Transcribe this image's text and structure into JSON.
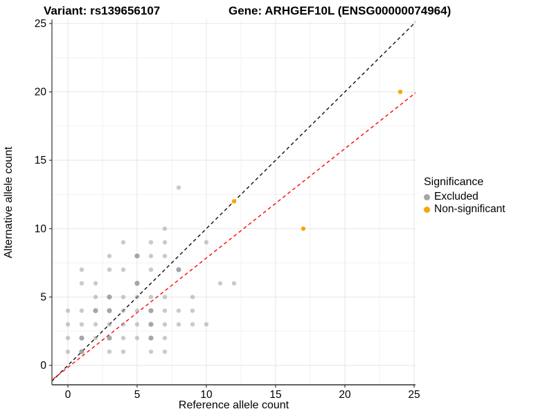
{
  "titles": {
    "variant": "Variant: rs139656107",
    "gene": "Gene: ARHGEF10L (ENSG00000074964)"
  },
  "legend": {
    "title": "Significance",
    "items": [
      {
        "label": "Excluded",
        "color": "#A6A6A6"
      },
      {
        "label": "Non-significant",
        "color": "#F9A602"
      }
    ]
  },
  "colors": {
    "background": "#ffffff",
    "grid_major": "#E5E5E5",
    "grid_minor": "#F2F2F2",
    "axis_line": "#4D4D4D",
    "identity_line": "#0D0D0D",
    "regression_line": "#FF0000",
    "excluded_point": "#969696",
    "non_significant_point": "#F9A602",
    "text": "#000000"
  },
  "chart_data": {
    "type": "scatter",
    "title_left": "Variant: rs139656107",
    "title_right": "Gene: ARHGEF10L (ENSG00000074964)",
    "xlabel": "Reference allele count",
    "ylabel": "Alternative allele count",
    "xlim": [
      -1.15,
      25.1
    ],
    "ylim": [
      -1.42,
      25.3
    ],
    "x_ticks": [
      0,
      5,
      10,
      15,
      20,
      25
    ],
    "y_ticks": [
      0,
      5,
      10,
      15,
      20,
      25
    ],
    "grid": "major+minor",
    "minor_step": 2.5,
    "legend_position": "right",
    "series": [
      {
        "name": "Excluded",
        "color": "#969696",
        "points": [
          [
            8,
            13,
            1
          ],
          [
            7,
            10,
            1
          ],
          [
            4,
            9,
            1
          ],
          [
            6,
            9,
            1
          ],
          [
            7,
            9,
            1
          ],
          [
            10,
            9,
            1
          ],
          [
            3,
            8,
            1
          ],
          [
            5,
            8,
            2
          ],
          [
            6,
            8,
            1
          ],
          [
            7,
            8,
            1
          ],
          [
            1,
            7,
            1
          ],
          [
            3,
            7,
            1
          ],
          [
            4,
            7,
            1
          ],
          [
            6,
            7,
            1
          ],
          [
            8,
            7,
            2
          ],
          [
            1,
            6,
            1
          ],
          [
            2,
            6,
            1
          ],
          [
            5,
            6,
            2
          ],
          [
            11,
            6,
            1
          ],
          [
            12,
            6,
            1
          ],
          [
            2,
            5,
            1
          ],
          [
            3,
            5,
            2
          ],
          [
            4,
            5,
            1
          ],
          [
            5,
            5,
            1
          ],
          [
            6,
            5,
            1
          ],
          [
            7,
            5,
            1
          ],
          [
            9,
            5,
            1
          ],
          [
            0,
            4,
            1
          ],
          [
            1,
            4,
            1
          ],
          [
            2,
            4,
            2
          ],
          [
            3,
            4,
            2
          ],
          [
            4,
            4,
            1
          ],
          [
            5,
            4,
            1
          ],
          [
            6,
            4,
            2
          ],
          [
            7,
            4,
            1
          ],
          [
            8,
            4,
            1
          ],
          [
            9,
            4,
            1
          ],
          [
            0,
            3,
            1
          ],
          [
            1,
            3,
            1
          ],
          [
            2,
            3,
            1
          ],
          [
            3,
            3,
            1
          ],
          [
            4,
            3,
            1
          ],
          [
            5,
            3,
            1
          ],
          [
            6,
            3,
            2
          ],
          [
            7,
            3,
            1
          ],
          [
            8,
            3,
            1
          ],
          [
            9,
            3,
            1
          ],
          [
            10,
            3,
            1
          ],
          [
            0,
            2,
            1
          ],
          [
            1,
            2,
            2
          ],
          [
            2,
            2,
            1
          ],
          [
            3,
            2,
            2
          ],
          [
            4,
            2,
            1
          ],
          [
            5,
            2,
            1
          ],
          [
            6,
            2,
            2
          ],
          [
            7,
            2,
            1
          ],
          [
            0,
            1,
            1
          ],
          [
            1,
            1,
            2
          ],
          [
            3,
            1,
            1
          ],
          [
            4,
            1,
            1
          ],
          [
            6,
            1,
            1
          ],
          [
            7,
            1,
            1
          ]
        ]
      },
      {
        "name": "Non-significant",
        "color": "#F9A602",
        "points": [
          [
            12,
            12,
            1
          ],
          [
            17,
            10,
            1
          ],
          [
            24,
            20,
            1
          ]
        ]
      }
    ],
    "lines": [
      {
        "name": "identity",
        "style": "dashed",
        "color": "#0D0D0D",
        "slope": 1.0,
        "intercept": 0
      },
      {
        "name": "regression",
        "style": "dashed",
        "color": "#FF0000",
        "slope": 0.8,
        "intercept": -0.15
      }
    ]
  }
}
